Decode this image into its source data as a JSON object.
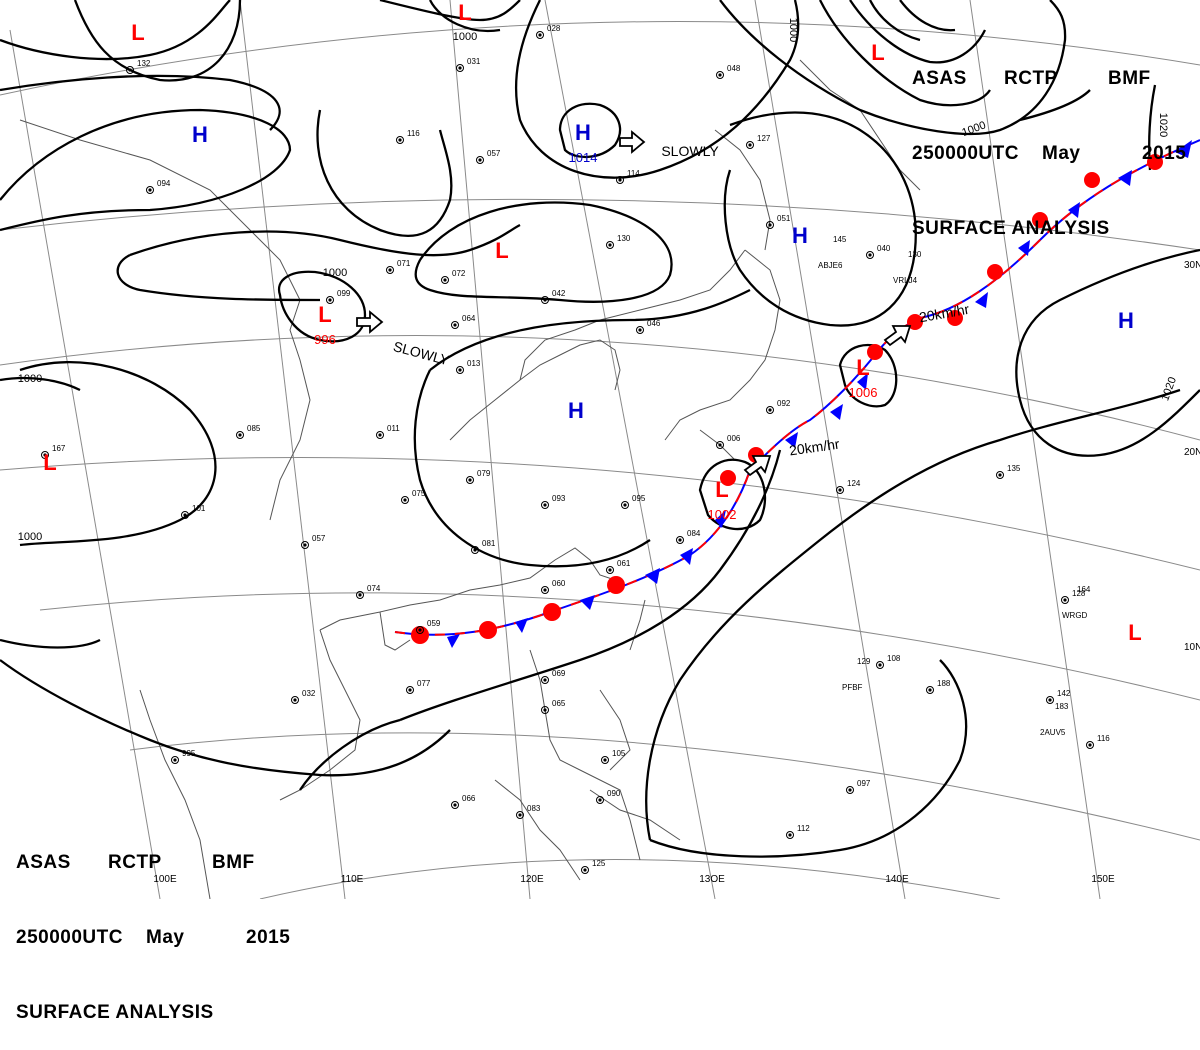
{
  "header": {
    "agency": "ASAS",
    "station": "RCTP",
    "code": "BMF",
    "time": "250000UTC",
    "month": "May",
    "year": "2015",
    "title": "SURFACE ANALYSIS"
  },
  "latitude_labels": [
    "30N",
    "20N",
    "10N"
  ],
  "longitude_labels": [
    "100E",
    "110E",
    "120E",
    "13OE",
    "140E",
    "150E"
  ],
  "pressure_centers": [
    {
      "kind": "L",
      "value": ""
    },
    {
      "kind": "L",
      "value": ""
    },
    {
      "kind": "L",
      "value": ""
    },
    {
      "kind": "H",
      "value": ""
    },
    {
      "kind": "H",
      "value": "1014"
    },
    {
      "kind": "L",
      "value": ""
    },
    {
      "kind": "L",
      "value": "996"
    },
    {
      "kind": "H",
      "value": ""
    },
    {
      "kind": "H",
      "value": ""
    },
    {
      "kind": "L",
      "value": ""
    },
    {
      "kind": "L",
      "value": "1002"
    },
    {
      "kind": "L",
      "value": "1006"
    },
    {
      "kind": "H",
      "value": ""
    },
    {
      "kind": "L",
      "value": ""
    }
  ],
  "isobar_labels": [
    "1000",
    "1000",
    "1000",
    "1000",
    "1000",
    "1000",
    "1020",
    "1020"
  ],
  "motion_labels": [
    "SLOWLY",
    "SLOWLY",
    "20km/hr",
    "20km/hr"
  ],
  "colors": {
    "low": "#ff0000",
    "high": "#0000cc",
    "warm_front": "#ff0000",
    "cold_front": "#0000ff",
    "isobar": "#000000",
    "coast": "#555555",
    "grid": "#888888"
  },
  "station_samples": [
    {
      "name": "ABJE6",
      "p": "145"
    },
    {
      "name": "VRLJ4",
      "p": "130"
    },
    {
      "name": "PFBF",
      "p": "129"
    },
    {
      "name": "WRGD",
      "p": "164"
    },
    {
      "name": "2AUV5",
      "p": "183"
    }
  ],
  "station_numbers": [
    "028",
    "031",
    "116",
    "057",
    "114",
    "048",
    "127",
    "130",
    "042",
    "046",
    "064",
    "071",
    "072",
    "013",
    "011",
    "075",
    "079",
    "093",
    "081",
    "095",
    "084",
    "061",
    "060",
    "069",
    "065",
    "066",
    "083",
    "090",
    "097",
    "112",
    "125",
    "105",
    "135",
    "124",
    "128",
    "108",
    "188",
    "142",
    "116",
    "132",
    "094",
    "167",
    "101",
    "032",
    "995",
    "074",
    "077",
    "059",
    "057",
    "085",
    "006",
    "092",
    "040",
    "051",
    "099"
  ]
}
